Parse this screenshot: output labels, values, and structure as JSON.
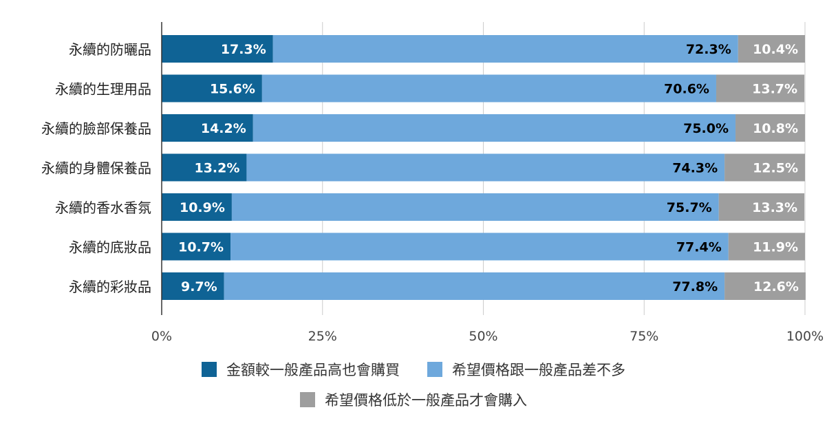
{
  "chart_data": {
    "type": "bar",
    "orientation": "horizontal",
    "stacked": true,
    "categories": [
      "永續的防曬品",
      "永續的生理用品",
      "永續的臉部保養品",
      "永續的身體保養品",
      "永續的香水香氛",
      "永續的底妝品",
      "永續的彩妝品"
    ],
    "series": [
      {
        "name": "金額較一般產品高也會購買",
        "values": [
          17.3,
          15.6,
          14.2,
          13.2,
          10.9,
          10.7,
          9.7
        ],
        "labels": [
          "17.3%",
          "15.6%",
          "14.2%",
          "13.2%",
          "10.9%",
          "10.7%",
          "9.7%"
        ],
        "color": "#0f6395",
        "label_color": "#ffffff"
      },
      {
        "name": "希望價格跟一般產品差不多",
        "values": [
          72.3,
          70.6,
          75.0,
          74.3,
          75.7,
          77.4,
          77.8
        ],
        "labels": [
          "72.3%",
          "70.6%",
          "75.0%",
          "74.3%",
          "75.7%",
          "77.4%",
          "77.8%"
        ],
        "color": "#6ea8dc",
        "label_color": "#000000"
      },
      {
        "name": "希望價格低於一般產品才會購入",
        "values": [
          10.4,
          13.7,
          10.8,
          12.5,
          13.3,
          11.9,
          12.6
        ],
        "labels": [
          "10.4%",
          "13.7%",
          "10.8%",
          "12.5%",
          "13.3%",
          "11.9%",
          "12.6%"
        ],
        "color": "#9e9e9e",
        "label_color": "#ffffff"
      }
    ],
    "xlim": [
      0,
      100
    ],
    "xticks": [
      0,
      25,
      50,
      75,
      100
    ],
    "xtick_labels": [
      "0%",
      "25%",
      "50%",
      "75%",
      "100%"
    ],
    "grid": true,
    "legend_position": "bottom"
  }
}
